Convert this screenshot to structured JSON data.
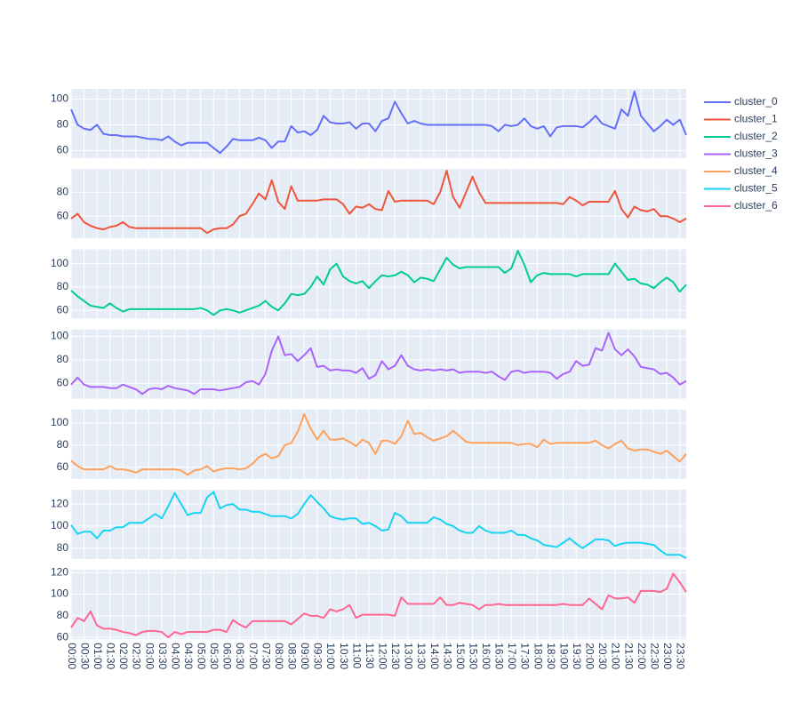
{
  "chart_data": {
    "type": "line",
    "categories": [
      "00:00",
      null,
      "00:30",
      null,
      "01:00",
      null,
      "01:30",
      null,
      "02:00",
      null,
      "02:30",
      null,
      "03:00",
      null,
      "03:30",
      null,
      "04:00",
      null,
      "04:30",
      null,
      "05:00",
      null,
      "05:30",
      null,
      "06:00",
      null,
      "06:30",
      null,
      "07:00",
      null,
      "07:30",
      null,
      "08:00",
      null,
      "08:30",
      null,
      "09:00",
      null,
      "09:30",
      null,
      "10:00",
      null,
      "10:30",
      null,
      "11:00",
      null,
      "11:30",
      null,
      "12:00",
      null,
      "12:30",
      null,
      "13:00",
      null,
      "13:30",
      null,
      "14:00",
      null,
      "14:30",
      null,
      "15:00",
      null,
      "15:30",
      null,
      "16:00",
      null,
      "16:30",
      null,
      "17:00",
      null,
      "17:30",
      null,
      "18:00",
      null,
      "18:30",
      null,
      "19:00",
      null,
      "19:30",
      null,
      "20:00",
      null,
      "20:30",
      null,
      "21:00",
      null,
      "21:30",
      null,
      "22:00",
      null,
      "22:30",
      null,
      "23:00",
      null,
      "23:30",
      null
    ],
    "grid": true,
    "series": [
      {
        "name": "cluster_0",
        "color": "#636efa",
        "ylim": [
          54,
          108
        ],
        "yticks": [
          60,
          80,
          100
        ],
        "values": [
          92,
          80,
          77,
          76,
          80,
          73,
          72,
          72,
          71,
          71,
          71,
          70,
          69,
          69,
          68,
          71,
          67,
          64,
          66,
          66,
          66,
          66,
          62,
          58,
          63,
          69,
          68,
          68,
          68,
          70,
          68,
          62,
          67,
          67,
          79,
          74,
          75,
          72,
          76,
          87,
          82,
          81,
          81,
          82,
          77,
          81,
          81,
          75,
          83,
          85,
          98,
          89,
          81,
          83,
          81,
          80,
          80,
          80,
          80,
          80,
          80,
          80,
          80,
          80,
          80,
          79,
          75,
          80,
          79,
          80,
          85,
          79,
          77,
          79,
          71,
          78,
          79,
          79,
          79,
          78,
          82,
          87,
          81,
          79,
          77,
          92,
          87,
          106,
          87,
          81,
          75,
          79,
          84,
          80,
          84,
          72
        ]
      },
      {
        "name": "cluster_1",
        "color": "#EF553B",
        "ylim": [
          41.5,
          99.3
        ],
        "yticks": [
          60,
          80
        ],
        "values": [
          58,
          62,
          55,
          52,
          50,
          49,
          51,
          52,
          55,
          51,
          50,
          50,
          50,
          50,
          50,
          50,
          50,
          50,
          50,
          50,
          50,
          46,
          49,
          50,
          50,
          53,
          60,
          62,
          70,
          79,
          74,
          90,
          72,
          66,
          85,
          73,
          73,
          73,
          73,
          74,
          74,
          74,
          70,
          62,
          68,
          67,
          70,
          66,
          65,
          81,
          72,
          73,
          73,
          73,
          73,
          73,
          70,
          80,
          98,
          76,
          67,
          80,
          93,
          80,
          71,
          71,
          71,
          71,
          71,
          71,
          71,
          71,
          71,
          71,
          71,
          71,
          70,
          76,
          73,
          69,
          72,
          72,
          72,
          72,
          81,
          66,
          59,
          68,
          65,
          64,
          66,
          60,
          60,
          58,
          55,
          58
        ]
      },
      {
        "name": "cluster_2",
        "color": "#00cc96",
        "ylim": [
          53,
          112.3
        ],
        "yticks": [
          60,
          80,
          100
        ],
        "values": [
          77,
          72,
          68,
          64,
          63,
          62,
          66,
          62,
          59,
          61,
          61,
          61,
          61,
          61,
          61,
          61,
          61,
          61,
          61,
          61,
          62,
          60,
          56,
          60,
          61,
          60,
          58,
          60,
          62,
          64,
          68,
          63,
          60,
          66,
          74,
          73,
          74,
          80,
          89,
          82,
          95,
          100,
          89,
          85,
          83,
          85,
          79,
          85,
          90,
          89,
          90,
          93,
          90,
          84,
          88,
          87,
          85,
          95,
          105,
          99,
          96,
          97,
          97,
          97,
          97,
          97,
          97,
          92,
          96,
          111,
          99,
          84,
          90,
          92,
          91,
          91,
          91,
          91,
          89,
          91,
          91,
          91,
          91,
          91,
          100,
          93,
          86,
          87,
          83,
          82,
          79,
          84,
          88,
          84,
          76,
          82
        ]
      },
      {
        "name": "cluster_3",
        "color": "#ab63fa",
        "ylim": [
          47,
          106
        ],
        "yticks": [
          60,
          80,
          100
        ],
        "values": [
          59,
          65,
          59,
          57,
          57,
          57,
          56,
          56,
          59,
          57,
          55,
          51,
          55,
          56,
          55,
          58,
          56,
          55,
          54,
          51,
          55,
          55,
          55,
          54,
          55,
          56,
          57,
          61,
          62,
          59,
          68,
          88,
          100,
          84,
          85,
          79,
          84,
          90,
          74,
          75,
          71,
          72,
          71,
          71,
          69,
          73,
          64,
          67,
          79,
          72,
          75,
          84,
          75,
          72,
          71,
          72,
          71,
          72,
          71,
          72,
          69,
          70,
          70,
          70,
          69,
          70,
          66,
          63,
          70,
          71,
          69,
          70,
          70,
          70,
          69,
          64,
          68,
          70,
          79,
          75,
          76,
          90,
          88,
          103,
          89,
          84,
          89,
          83,
          74,
          73,
          72,
          68,
          69,
          65,
          59,
          62
        ]
      },
      {
        "name": "cluster_4",
        "color": "#FFA15A",
        "ylim": [
          49.4,
          112.2
        ],
        "yticks": [
          60,
          80,
          100
        ],
        "values": [
          66,
          61,
          58,
          58,
          58,
          58,
          61,
          58,
          58,
          57,
          55,
          58,
          58,
          58,
          58,
          58,
          58,
          57,
          53,
          57,
          58,
          61,
          56,
          58,
          59,
          59,
          58,
          59,
          63,
          69,
          72,
          68,
          70,
          80,
          82,
          92,
          108,
          95,
          85,
          93,
          85,
          85,
          86,
          83,
          79,
          85,
          82,
          72,
          84,
          84,
          81,
          88,
          102,
          90,
          91,
          87,
          84,
          86,
          88,
          93,
          88,
          83,
          82,
          82,
          82,
          82,
          82,
          82,
          82,
          80,
          81,
          81,
          78,
          85,
          81,
          82,
          82,
          82,
          82,
          82,
          82,
          84,
          80,
          77,
          81,
          84,
          77,
          75,
          76,
          76,
          74,
          72,
          75,
          70,
          65,
          72
        ]
      },
      {
        "name": "cluster_5",
        "color": "#19d3f3",
        "ylim": [
          70.2,
          133
        ],
        "yticks": [
          80,
          100,
          120
        ],
        "values": [
          101,
          93,
          95,
          95,
          89,
          96,
          96,
          99,
          99,
          103,
          103,
          103,
          107,
          111,
          107,
          118,
          130,
          120,
          110,
          112,
          112,
          126,
          131,
          116,
          119,
          120,
          115,
          115,
          113,
          113,
          111,
          109,
          109,
          109,
          107,
          111,
          120,
          128,
          122,
          116,
          109,
          107,
          106,
          107,
          107,
          102,
          103,
          100,
          96,
          97,
          112,
          109,
          103,
          103,
          103,
          103,
          108,
          106,
          102,
          100,
          96,
          94,
          94,
          100,
          96,
          94,
          94,
          94,
          96,
          92,
          92,
          89,
          87,
          83,
          82,
          81,
          85,
          89,
          84,
          80,
          84,
          88,
          88,
          87,
          82,
          84,
          85,
          85,
          85,
          84,
          83,
          78,
          74,
          74,
          74,
          71
        ]
      },
      {
        "name": "cluster_6",
        "color": "#FF6692",
        "ylim": [
          58.3,
          122.5
        ],
        "yticks": [
          60,
          80,
          100,
          120
        ],
        "values": [
          69,
          78,
          75,
          84,
          71,
          68,
          68,
          67,
          65,
          64,
          62,
          65,
          66,
          66,
          65,
          60,
          65,
          63,
          65,
          65,
          65,
          65,
          67,
          67,
          65,
          76,
          72,
          69,
          75,
          75,
          75,
          75,
          75,
          75,
          72,
          77,
          82,
          80,
          80,
          78,
          86,
          84,
          86,
          90,
          78,
          81,
          81,
          81,
          81,
          81,
          80,
          97,
          91,
          91,
          91,
          91,
          91,
          97,
          90,
          90,
          92,
          91,
          90,
          86,
          90,
          90,
          91,
          90,
          90,
          90,
          90,
          90,
          90,
          90,
          90,
          90,
          91,
          90,
          90,
          90,
          96,
          91,
          86,
          99,
          96,
          96,
          97,
          92,
          103,
          103,
          103,
          102,
          105,
          119,
          111,
          102
        ]
      }
    ]
  }
}
